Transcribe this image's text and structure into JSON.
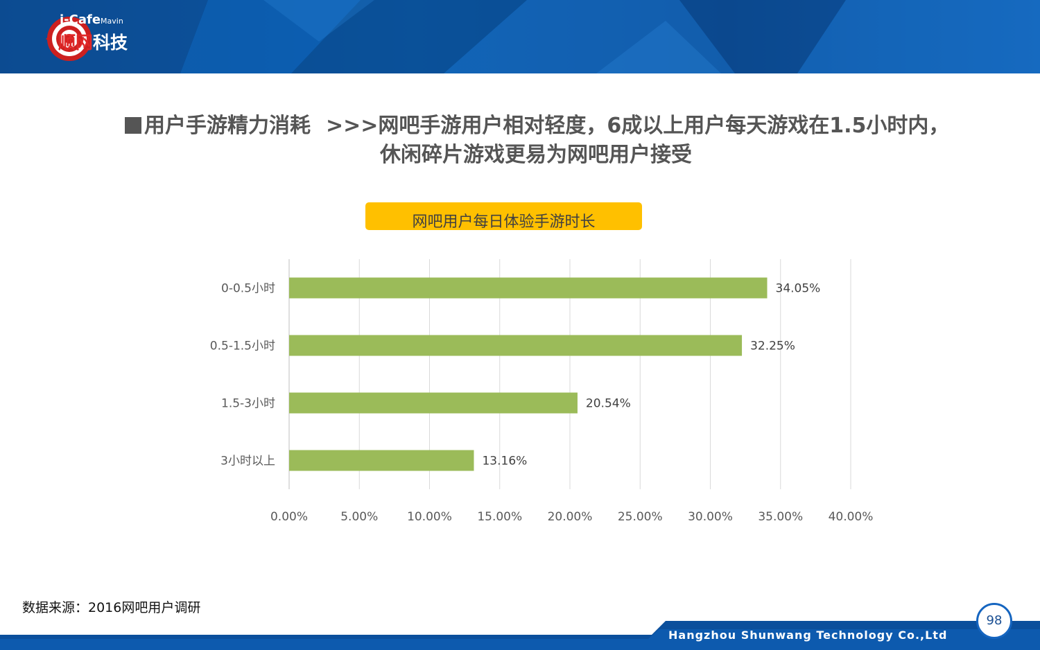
{
  "brand": {
    "logo_line1": "i-Cafe",
    "logo_line1_suffix": "Mavin",
    "logo_cn_red": "顺网",
    "logo_cn_white": "科技",
    "company_en": "Hangzhou Shunwang Technology Co.,Ltd"
  },
  "heading": {
    "section": "用户手游精力消耗",
    "headline_line1": ">>>网吧手游用户相对轻度，6成以上用户每天游戏在1.5小时内，",
    "headline_line2": "休闲碎片游戏更易为网吧用户接受"
  },
  "chart_box_title": "网吧用户每日体验手游时长",
  "chart_data": {
    "type": "bar",
    "orientation": "horizontal",
    "categories": [
      "0-0.5小时",
      "0.5-1.5小时",
      "1.5-3小时",
      "3小时以上"
    ],
    "values": [
      34.05,
      32.25,
      20.54,
      13.16
    ],
    "value_labels": [
      "34.05%",
      "32.25%",
      "20.54%",
      "13.16%"
    ],
    "xlim": [
      0,
      40
    ],
    "xticks": [
      0,
      5,
      10,
      15,
      20,
      25,
      30,
      35,
      40
    ],
    "xtick_labels": [
      "0.00%",
      "5.00%",
      "10.00%",
      "15.00%",
      "20.00%",
      "25.00%",
      "30.00%",
      "35.00%",
      "40.00%"
    ],
    "grid": true,
    "bar_color": "#9bbb59"
  },
  "source_note": "数据来源：2016网吧用户调研",
  "page_number": "98",
  "colors": {
    "header": "#0b55a3",
    "accent": "#ffc000",
    "title_text": "#555555"
  }
}
